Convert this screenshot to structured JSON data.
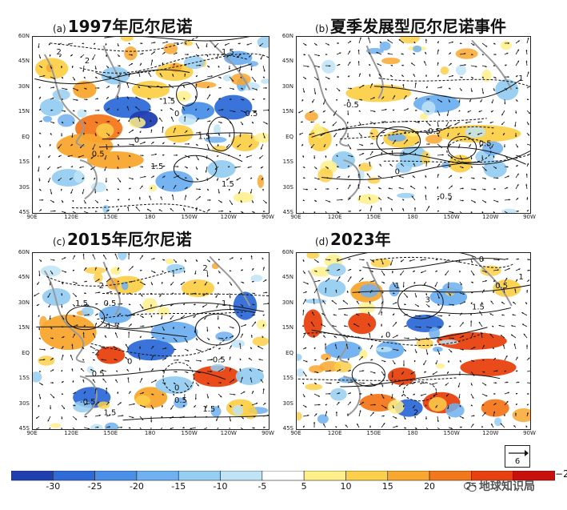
{
  "panels": [
    {
      "tag": "(a)",
      "title": "1997年厄尔尼诺",
      "contour_labels": [
        "2",
        "1.5",
        "1.5",
        "2",
        "0",
        "0",
        "0.5",
        "1.5",
        "1.5",
        "1.5",
        "0.5"
      ]
    },
    {
      "tag": "(b)",
      "title": "夏季发展型厄尔尼诺事件",
      "contour_labels": [
        "-0.5",
        "-0.5",
        "0.5",
        "0",
        "-0.5",
        "1"
      ]
    },
    {
      "tag": "(c)",
      "title": "2015年厄尔尼诺",
      "contour_labels": [
        "2",
        "0.5",
        "-1.5",
        "1.5",
        "-2",
        "0",
        "0.5",
        "-0.5",
        "-0.5",
        "0.5",
        "0",
        "1.5",
        "1.5",
        "2",
        "1"
      ]
    },
    {
      "tag": "(d)",
      "title": "2023年",
      "contour_labels": [
        "0",
        "0.5",
        "1.5",
        "0",
        "3",
        "1",
        "2",
        "1"
      ]
    }
  ],
  "lat_labels": [
    "60N",
    "45N",
    "30N",
    "15N",
    "EQ",
    "15S",
    "30S",
    "45S"
  ],
  "lon_labels": [
    "90E",
    "120E",
    "150E",
    "180",
    "150W",
    "120W",
    "90W"
  ],
  "reference_vector": {
    "value": "6"
  },
  "colorbar": {
    "ticks": [
      "-30",
      "-25",
      "-20",
      "-15",
      "-10",
      "-5",
      "5",
      "10",
      "15",
      "20",
      "25"
    ],
    "exponent": "−2",
    "colors": [
      "#1f3fb0",
      "#2f6bd8",
      "#4a90e8",
      "#6fb0f0",
      "#96cef2",
      "#c0e4f6",
      "#ffffff",
      "#fff08a",
      "#fcd04a",
      "#f9a72e",
      "#f3781c",
      "#e8410f",
      "#c8100c"
    ]
  },
  "chart_data": [
    {
      "type": "heatmap",
      "title": "1997年厄尔尼诺",
      "xlabel": "",
      "ylabel": "",
      "x_ticks": [
        "90E",
        "120E",
        "150E",
        "180",
        "150W",
        "120W",
        "90W"
      ],
      "y_ticks": [
        "60N",
        "45N",
        "30N",
        "15N",
        "EQ",
        "15S",
        "30S",
        "45S"
      ],
      "contour_labels": [
        2,
        1.5,
        1.5,
        2,
        0,
        0,
        0.5,
        1.5,
        1.5,
        1.5,
        0.5
      ]
    },
    {
      "type": "heatmap",
      "title": "夏季发展型厄尔尼诺事件",
      "xlabel": "",
      "ylabel": "",
      "x_ticks": [
        "90E",
        "120E",
        "150E",
        "180",
        "150W",
        "120W",
        "90W"
      ],
      "y_ticks": [
        "60N",
        "45N",
        "30N",
        "15N",
        "EQ",
        "15S",
        "30S",
        "45S"
      ],
      "contour_labels": [
        -0.5,
        -0.5,
        0.5,
        0,
        -0.5,
        1
      ]
    },
    {
      "type": "heatmap",
      "title": "2015年厄尔尼诺",
      "xlabel": "",
      "ylabel": "",
      "x_ticks": [
        "90E",
        "120E",
        "150E",
        "180",
        "150W",
        "120W",
        "90W"
      ],
      "y_ticks": [
        "60N",
        "45N",
        "30N",
        "15N",
        "EQ",
        "15S",
        "30S",
        "45S"
      ],
      "contour_labels": [
        2,
        0.5,
        -1.5,
        1.5,
        -2,
        0,
        0.5,
        -0.5,
        -0.5,
        0.5,
        0,
        1.5,
        1.5,
        2,
        1
      ]
    },
    {
      "type": "heatmap",
      "title": "2023年",
      "xlabel": "",
      "ylabel": "",
      "x_ticks": [
        "90E",
        "120E",
        "150E",
        "180",
        "150W",
        "120W",
        "90W"
      ],
      "y_ticks": [
        "60N",
        "45N",
        "30N",
        "15N",
        "EQ",
        "15S",
        "30S",
        "45S"
      ],
      "contour_labels": [
        0,
        0.5,
        1.5,
        0,
        3,
        1,
        2,
        1
      ]
    }
  ],
  "watermark": {
    "text": "地球知识局"
  }
}
